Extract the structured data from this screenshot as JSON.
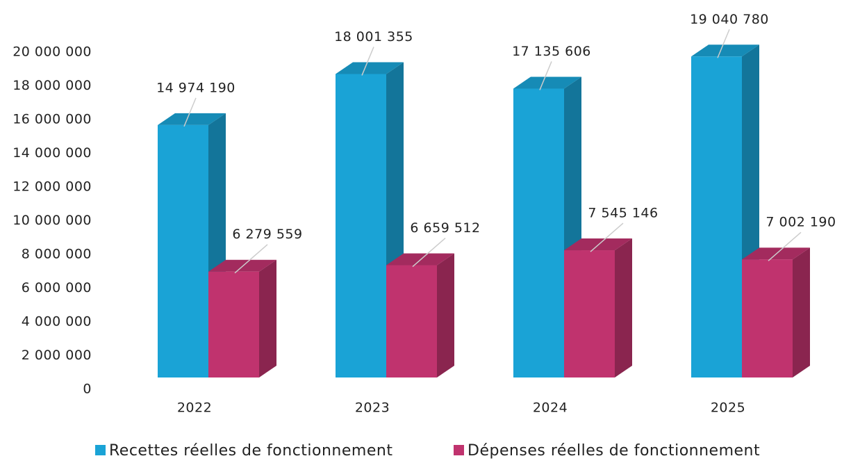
{
  "chart_data": {
    "type": "bar3d",
    "categories": [
      "2022",
      "2023",
      "2024",
      "2025"
    ],
    "series": [
      {
        "name": "Recettes réelles de fonctionnement",
        "color": "#1aa3d6",
        "values": [
          14974190,
          18001355,
          17135606,
          19040780
        ],
        "value_labels": [
          "14 974 190",
          "18 001 355",
          "17 135 606",
          "19 040 780"
        ]
      },
      {
        "name": "Dépenses réelles de fonctionnement",
        "color": "#c0336e",
        "values": [
          6279559,
          6659512,
          7545146,
          7002190
        ],
        "value_labels": [
          "6 279 559",
          "6 659 512",
          "7 545 146",
          "7 002 190"
        ]
      }
    ],
    "ylim": [
      0,
      20000000
    ],
    "yticks": [
      0,
      {
        "value": 2000000,
        "label": "2 000 000"
      },
      {
        "value": 4000000,
        "label": "4 000 000"
      },
      {
        "value": 6000000,
        "label": "6 000 000"
      },
      {
        "value": 8000000,
        "label": "8 000 000"
      },
      {
        "value": 10000000,
        "label": "10 000 000"
      },
      {
        "value": 12000000,
        "label": "12 000 000"
      },
      {
        "value": 14000000,
        "label": "14 000 000"
      },
      {
        "value": 16000000,
        "label": "16 000 000"
      },
      {
        "value": 18000000,
        "label": "18 000 000"
      },
      {
        "value": 20000000,
        "label": "20 000 000"
      }
    ],
    "legend": "bottom"
  }
}
